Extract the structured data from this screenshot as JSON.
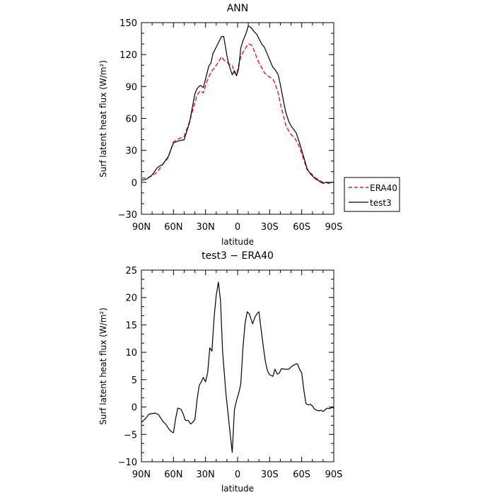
{
  "chart_data": [
    {
      "type": "line",
      "title": "ANN",
      "xlabel": "latitude",
      "ylabel": "Surf latent heat flux (W/m²)",
      "xlim": [
        -90,
        90
      ],
      "ylim": [
        -30,
        150
      ],
      "xticks": [
        -90,
        -60,
        -30,
        0,
        30,
        60,
        90
      ],
      "xtick_labels": [
        "90N",
        "60N",
        "30N",
        "0",
        "30S",
        "60S",
        "90S"
      ],
      "yticks": [
        -30,
        0,
        30,
        60,
        90,
        120,
        150
      ],
      "ytick_labels": [
        "−30",
        "0",
        "30",
        "60",
        "90",
        "120",
        "150"
      ],
      "legend_position": "right",
      "series": [
        {
          "name": "ERA40",
          "color": "#e41a1c",
          "dash": "dashed",
          "x": [
            -90,
            -85,
            -80,
            -75,
            -70,
            -65,
            -60,
            -55,
            -50,
            -45,
            -40,
            -38,
            -35,
            -32,
            -29,
            -27,
            -25,
            -23,
            -20,
            -18,
            -15,
            -13,
            -10,
            -8,
            -5,
            -3,
            -1,
            1,
            3,
            5,
            8,
            10,
            13,
            15,
            18,
            20,
            23,
            25,
            28,
            30,
            33,
            35,
            38,
            40,
            43,
            45,
            48,
            50,
            53,
            55,
            58,
            60,
            63,
            65,
            68,
            70,
            73,
            75,
            78,
            80,
            83,
            85,
            88,
            90
          ],
          "y": [
            4,
            4,
            6,
            10,
            17,
            23,
            38,
            41,
            43,
            57,
            75,
            82,
            86,
            84,
            94,
            99,
            103,
            106,
            110,
            113,
            118,
            115,
            113,
            111,
            110,
            103,
            101,
            110,
            118,
            122,
            127,
            130,
            129,
            125,
            117,
            112,
            107,
            103,
            100,
            99,
            97,
            93,
            84,
            74,
            62,
            54,
            48,
            45,
            42,
            39,
            33,
            27,
            18,
            12,
            9,
            7,
            4,
            3,
            1,
            0,
            0,
            0,
            0,
            0
          ]
        },
        {
          "name": "test3",
          "color": "#000000",
          "dash": "solid",
          "x": [
            -90,
            -85,
            -80,
            -75,
            -70,
            -65,
            -60,
            -55,
            -50,
            -45,
            -40,
            -38,
            -35,
            -32,
            -29,
            -27,
            -25,
            -23,
            -20,
            -18,
            -15,
            -13,
            -10,
            -8,
            -5,
            -3,
            -1,
            1,
            3,
            5,
            8,
            10,
            13,
            15,
            18,
            20,
            23,
            25,
            28,
            30,
            33,
            35,
            38,
            40,
            43,
            45,
            48,
            50,
            53,
            55,
            58,
            60,
            63,
            65,
            68,
            70,
            73,
            75,
            78,
            80,
            83,
            85,
            88,
            90
          ],
          "y": [
            2,
            3,
            7,
            14,
            17,
            24,
            37,
            39,
            40,
            56,
            83,
            88,
            91,
            89,
            101,
            109,
            112,
            121,
            127,
            131,
            137,
            137,
            119,
            110,
            101,
            105,
            100,
            107,
            126,
            133,
            140,
            147,
            145,
            142,
            139,
            135,
            129,
            127,
            120,
            115,
            108,
            106,
            101,
            92,
            76,
            66,
            57,
            53,
            49,
            46,
            37,
            30,
            20,
            13,
            8,
            6,
            3,
            2,
            0,
            -1,
            0,
            -1,
            0,
            0
          ]
        }
      ]
    },
    {
      "type": "line",
      "title": "test3 − ERA40",
      "xlabel": "latitude",
      "ylabel": "Surf latent heat flux (W/m²)",
      "xlim": [
        -90,
        90
      ],
      "ylim": [
        -10,
        25
      ],
      "xticks": [
        -90,
        -60,
        -30,
        0,
        30,
        60,
        90
      ],
      "xtick_labels": [
        "90N",
        "60N",
        "30N",
        "0",
        "30S",
        "60S",
        "90S"
      ],
      "yticks": [
        -10,
        -5,
        0,
        5,
        10,
        15,
        20,
        25
      ],
      "ytick_labels": [
        "−10",
        "−5",
        "0",
        "5",
        "10",
        "15",
        "20",
        "25"
      ],
      "series": [
        {
          "color": "#000000",
          "dash": "solid",
          "x": [
            -90,
            -86,
            -83,
            -80,
            -77,
            -74,
            -70,
            -67,
            -64,
            -62,
            -60,
            -58,
            -56,
            -53,
            -51,
            -49,
            -46,
            -44,
            -42,
            -40,
            -38,
            -36,
            -34,
            -32,
            -30,
            -28,
            -26,
            -24,
            -22,
            -20,
            -18,
            -16,
            -14,
            -11,
            -9,
            -7,
            -5,
            -3,
            -1,
            1,
            3,
            5,
            7,
            9,
            11,
            14,
            16,
            18,
            20,
            22,
            24,
            26,
            28,
            30,
            33,
            35,
            37,
            39,
            41,
            44,
            46,
            48,
            50,
            52,
            54,
            56,
            58,
            60,
            62,
            64,
            66,
            68,
            70,
            72,
            74,
            76,
            78,
            80,
            82,
            84,
            86,
            88,
            90
          ],
          "y": [
            -2.8,
            -2.1,
            -1.3,
            -1.2,
            -1.1,
            -1.4,
            -2.6,
            -3.2,
            -4.1,
            -4.5,
            -4.7,
            -2.1,
            -0.2,
            -0.4,
            -1.2,
            -2.4,
            -2.5,
            -3.1,
            -2.8,
            -2.3,
            1.2,
            3.9,
            4.6,
            5.4,
            4.6,
            6.3,
            10.8,
            10.2,
            16.4,
            20.4,
            22.8,
            19.5,
            10.1,
            2.6,
            -1.1,
            -4.8,
            -8.3,
            -0.5,
            1.2,
            2.5,
            4.2,
            10.9,
            15.3,
            17.4,
            17.0,
            15.2,
            16.3,
            17.0,
            17.4,
            14.2,
            11.1,
            8.3,
            6.6,
            5.9,
            5.6,
            6.9,
            6.0,
            6.2,
            7.0,
            6.9,
            6.9,
            6.9,
            7.3,
            7.6,
            7.8,
            7.9,
            6.9,
            6.2,
            3.1,
            0.6,
            0.4,
            0.5,
            0.2,
            -0.4,
            -0.6,
            -0.7,
            -0.6,
            -0.8,
            -0.5,
            -0.2,
            -0.3,
            -0.1,
            -0.2
          ]
        }
      ]
    }
  ]
}
